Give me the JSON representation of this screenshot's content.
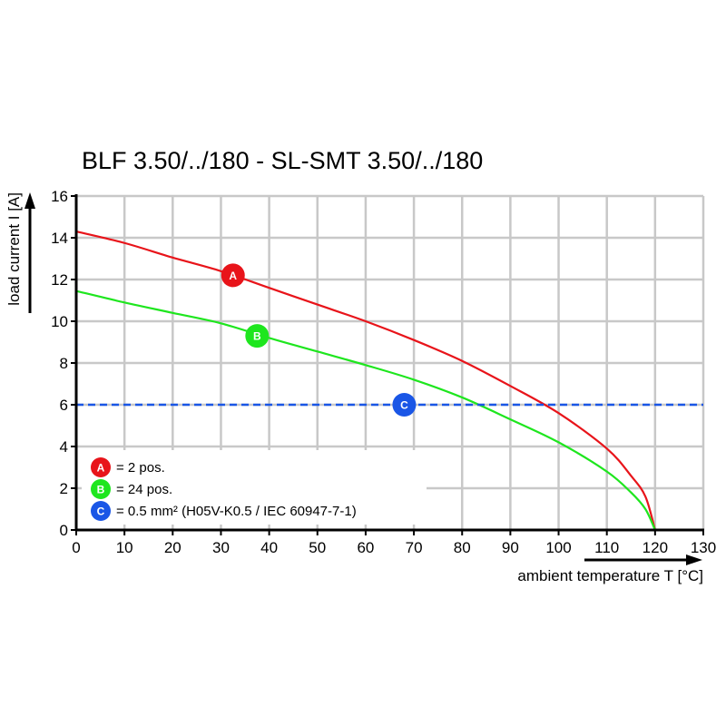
{
  "chart_data": {
    "type": "line",
    "title": "BLF 3.50/../180 - SL-SMT 3.50/../180",
    "xlabel": "ambient temperature T [°C]",
    "ylabel": "load current I [A]",
    "xlim": [
      0,
      130
    ],
    "ylim": [
      0,
      16
    ],
    "xticks": [
      0,
      10,
      20,
      30,
      40,
      50,
      60,
      70,
      80,
      90,
      100,
      110,
      120,
      130
    ],
    "yticks": [
      0,
      2,
      4,
      6,
      8,
      10,
      12,
      14,
      16
    ],
    "grid": true,
    "legend_position": "bottom-left",
    "series": [
      {
        "marker": "A",
        "color": "#e8141a",
        "x": [
          0,
          10,
          20,
          30,
          40,
          50,
          60,
          70,
          80,
          90,
          100,
          110,
          115,
          118,
          120
        ],
        "y": [
          14.3,
          13.75,
          13.05,
          12.4,
          11.6,
          10.8,
          10.0,
          9.1,
          8.1,
          6.9,
          5.6,
          3.9,
          2.6,
          1.6,
          0
        ]
      },
      {
        "marker": "B",
        "color": "#1ee61e",
        "x": [
          0,
          10,
          20,
          30,
          40,
          50,
          60,
          70,
          80,
          90,
          100,
          110,
          115,
          118,
          120
        ],
        "y": [
          11.45,
          10.9,
          10.4,
          9.9,
          9.2,
          8.55,
          7.9,
          7.2,
          6.35,
          5.3,
          4.2,
          2.8,
          1.8,
          1.0,
          0
        ]
      },
      {
        "marker": "C",
        "color": "#1a56e6",
        "style": "dashed",
        "x": [
          0,
          130
        ],
        "y": [
          6,
          6
        ]
      }
    ],
    "markers": [
      {
        "label": "A",
        "x": 32.5,
        "y": 12.2,
        "color": "#e8141a"
      },
      {
        "label": "B",
        "x": 37.5,
        "y": 9.3,
        "color": "#1ee61e"
      },
      {
        "label": "C",
        "x": 68,
        "y": 6,
        "color": "#1a56e6"
      }
    ],
    "legend": [
      {
        "marker": "A",
        "text": "= 2 pos.",
        "color": "#e8141a"
      },
      {
        "marker": "B",
        "text": "= 24 pos.",
        "color": "#1ee61e"
      },
      {
        "marker": "C",
        "text": "= 0.5 mm² (H05V-K0.5 / IEC 60947-7-1)",
        "color": "#1a56e6"
      }
    ]
  }
}
